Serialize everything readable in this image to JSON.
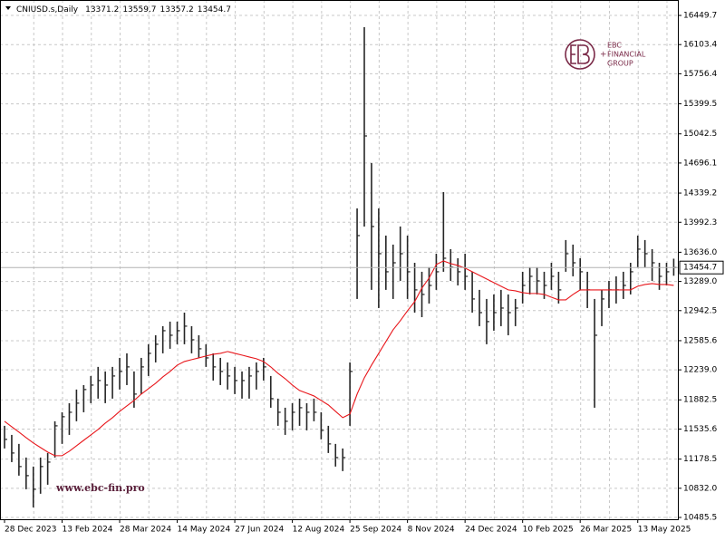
{
  "chart_data": {
    "type": "ohlc",
    "symbol": "CNIUSD.s,Daily",
    "header_ohlc": [
      13371.2,
      13559.7,
      13357.2,
      13454.7
    ],
    "watermark": "www.ebc-fin.pro",
    "logo": [
      "EBC",
      "FINANCIAL",
      "GROUP"
    ],
    "bar_color": "#262626",
    "grid": true,
    "ylim": [
      10464,
      16633
    ],
    "yticks": [
      {
        "value": 10485.5,
        "label": "10485.5"
      },
      {
        "value": 10832,
        "label": "10832.0"
      },
      11178.5,
      11535.6,
      11882.5,
      {
        "value": 12239,
        "label": "12239.0"
      },
      12585.6,
      12942.5,
      {
        "value": 13289,
        "label": "13289.0"
      },
      {
        "value": 13636,
        "label": "13636.0"
      },
      13992.3,
      14339.2,
      14696.1,
      15042.5,
      15399.5,
      15756.4,
      16103.4,
      16449.7
    ],
    "last_price": 13454.7,
    "categories": [
      "28 Dec 2023",
      null,
      null,
      null,
      null,
      null,
      null,
      null,
      "13 Feb 2024",
      null,
      null,
      null,
      null,
      null,
      null,
      null,
      "28 Mar 2024",
      null,
      null,
      null,
      null,
      null,
      null,
      null,
      "14 May 2024",
      null,
      null,
      null,
      null,
      null,
      null,
      null,
      "27 Jun 2024",
      null,
      null,
      null,
      null,
      null,
      null,
      null,
      "12 Aug 2024",
      null,
      null,
      null,
      null,
      null,
      null,
      null,
      "25 Sep 2024",
      null,
      null,
      null,
      null,
      null,
      null,
      null,
      "8 Nov 2024",
      null,
      null,
      null,
      null,
      null,
      null,
      null,
      "24 Dec 2024",
      null,
      null,
      null,
      null,
      null,
      null,
      null,
      "10 Feb 2025",
      null,
      null,
      null,
      null,
      null,
      null,
      null,
      "26 Mar 2025",
      null,
      null,
      null,
      null,
      null,
      null,
      null,
      "13 May 2025",
      null,
      null,
      null,
      null,
      null
    ],
    "high": [
      11574,
      11466,
      11359,
      11197,
      11090,
      11197,
      11251,
      11628,
      11735,
      11843,
      12005,
      12058,
      12166,
      12274,
      12220,
      12274,
      12381,
      12435,
      12220,
      12381,
      12543,
      12650,
      12758,
      12812,
      12812,
      12919,
      12758,
      12650,
      12543,
      12435,
      12381,
      12327,
      12274,
      12220,
      12274,
      12327,
      12381,
      12166,
      11897,
      11789,
      11843,
      11897,
      11843,
      11897,
      11735,
      11574,
      11359,
      11305,
      12327,
      14157,
      16310,
      14695,
      14157,
      13834,
      13727,
      13942,
      13834,
      13511,
      13404,
      13458,
      13619,
      14351,
      13673,
      13565,
      13619,
      13404,
      13189,
      13081,
      13135,
      13189,
      13135,
      13081,
      13404,
      13458,
      13458,
      13404,
      13511,
      13404,
      13781,
      13727,
      13565,
      13404,
      13081,
      13189,
      13296,
      13350,
      13404,
      13511,
      13834,
      13781,
      13673,
      13511,
      13511,
      13559.7
    ],
    "low": [
      11305,
      11143,
      10982,
      10820,
      10605,
      10767,
      10874,
      11197,
      11359,
      11466,
      11628,
      11735,
      11843,
      11897,
      11843,
      11897,
      12005,
      12058,
      11789,
      11951,
      12166,
      12327,
      12435,
      12489,
      12543,
      12543,
      12435,
      12381,
      12274,
      12112,
      12058,
      12005,
      11951,
      11897,
      11897,
      12005,
      12112,
      11789,
      11574,
      11466,
      11520,
      11574,
      11520,
      11628,
      11413,
      11251,
      11090,
      11036,
      11574,
      13081,
      13942,
      13189,
      12973,
      13189,
      13081,
      13296,
      13081,
      12919,
      12865,
      13027,
      13189,
      13404,
      13296,
      13242,
      13189,
      12919,
      12758,
      12543,
      12704,
      12758,
      12650,
      12758,
      13027,
      13135,
      13135,
      13081,
      13189,
      13027,
      13404,
      13350,
      13189,
      12973,
      11789,
      12758,
      12973,
      13027,
      13081,
      13135,
      13458,
      13458,
      13296,
      13189,
      13242,
      13357.2
    ],
    "close": [
      11413,
      11251,
      11090,
      10982,
      10820,
      11090,
      11143,
      11574,
      11682,
      11735,
      11843,
      12005,
      12058,
      12112,
      12058,
      12166,
      12220,
      12274,
      11951,
      12274,
      12435,
      12543,
      12704,
      12650,
      12704,
      12758,
      12596,
      12489,
      12381,
      12274,
      12220,
      12166,
      12112,
      12112,
      12166,
      12220,
      12274,
      11897,
      11735,
      11628,
      11735,
      11789,
      11735,
      11735,
      11520,
      11359,
      11197,
      11197,
      12220,
      13834,
      15018,
      13942,
      13619,
      13404,
      13511,
      13619,
      13404,
      13189,
      13135,
      13242,
      13404,
      13565,
      13458,
      13404,
      13350,
      13081,
      12919,
      12812,
      12919,
      12973,
      12919,
      12973,
      13242,
      13350,
      13296,
      13242,
      13350,
      13189,
      13619,
      13511,
      13404,
      13189,
      12650,
      13081,
      13189,
      13189,
      13242,
      13404,
      13673,
      13619,
      13511,
      13350,
      13404,
      13454.7
    ],
    "ma": {
      "color": "#e8161b",
      "values": [
        11628,
        11563,
        11499,
        11434,
        11370,
        11316,
        11262,
        11219,
        11219,
        11272,
        11337,
        11402,
        11466,
        11531,
        11606,
        11671,
        11746,
        11811,
        11875,
        11951,
        12015,
        12080,
        12155,
        12220,
        12295,
        12338,
        12360,
        12381,
        12403,
        12424,
        12435,
        12457,
        12435,
        12414,
        12392,
        12371,
        12338,
        12274,
        12198,
        12134,
        12058,
        11994,
        11962,
        11929,
        11875,
        11822,
        11746,
        11671,
        11714,
        11951,
        12144,
        12295,
        12435,
        12575,
        12715,
        12822,
        12941,
        13049,
        13210,
        13329,
        13490,
        13533,
        13501,
        13479,
        13447,
        13404,
        13361,
        13318,
        13275,
        13232,
        13189,
        13178,
        13156,
        13146,
        13146,
        13135,
        13102,
        13070,
        13070,
        13135,
        13189,
        13189,
        13189,
        13189,
        13189,
        13189,
        13189,
        13189,
        13232,
        13253,
        13264,
        13253,
        13253,
        13242
      ]
    }
  }
}
